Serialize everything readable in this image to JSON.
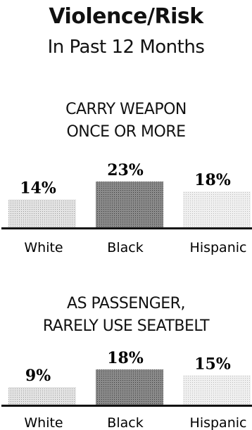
{
  "header": {
    "title": "Violence/Risk",
    "subtitle": "In Past 12 Months"
  },
  "chart_data": [
    {
      "type": "bar",
      "title": "CARRY WEAPON ONCE OR MORE",
      "title_lines": [
        "CARRY WEAPON",
        "ONCE OR MORE"
      ],
      "categories": [
        "White",
        "Black",
        "Hispanic"
      ],
      "values": [
        14,
        23,
        18
      ],
      "value_labels": [
        "14%",
        "23%",
        "18%"
      ],
      "unit": "%",
      "ylim": [
        0,
        23
      ],
      "colors": [
        "#b8b8b8",
        "#6e6e6e",
        "#d6d6d6"
      ]
    },
    {
      "type": "bar",
      "title": "AS PASSENGER, RARELY USE SEATBELT",
      "title_lines": [
        "AS PASSENGER,",
        "RARELY USE SEATBELT"
      ],
      "categories": [
        "White",
        "Black",
        "Hispanic"
      ],
      "values": [
        9,
        18,
        15
      ],
      "value_labels": [
        "9%",
        "18%",
        "15%"
      ],
      "unit": "%",
      "ylim": [
        0,
        18
      ],
      "colors": [
        "#b8b8b8",
        "#6e6e6e",
        "#d6d6d6"
      ]
    }
  ]
}
